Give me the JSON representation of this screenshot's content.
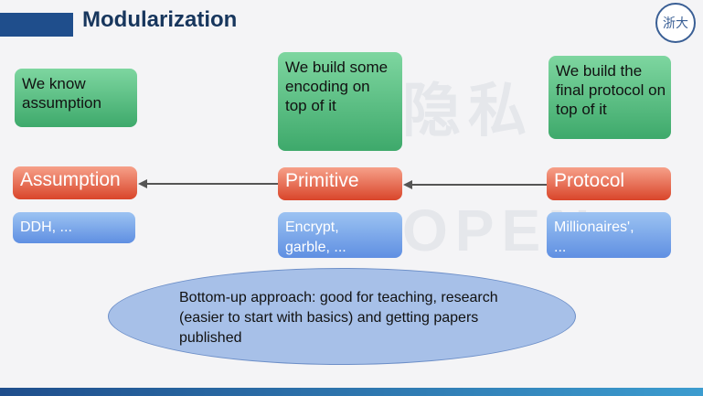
{
  "title": "Modularization",
  "logo_text": "浙大",
  "watermark": {
    "line1": "隐私",
    "line2": "OPEN"
  },
  "top_boxes": {
    "assumption_note": "We know assumption",
    "primitive_note": "We build some encoding on top of it",
    "protocol_note": "We build the final protocol on top of it"
  },
  "layers": {
    "assumption": "Assumption",
    "primitive": "Primitive",
    "protocol": "Protocol"
  },
  "examples": {
    "assumption": "DDH, ...",
    "primitive": "Encrypt, garble, ...",
    "protocol": "Millionaires', ..."
  },
  "approach": "Bottom-up approach: good for teaching, research (easier to start with basics) and getting papers published"
}
